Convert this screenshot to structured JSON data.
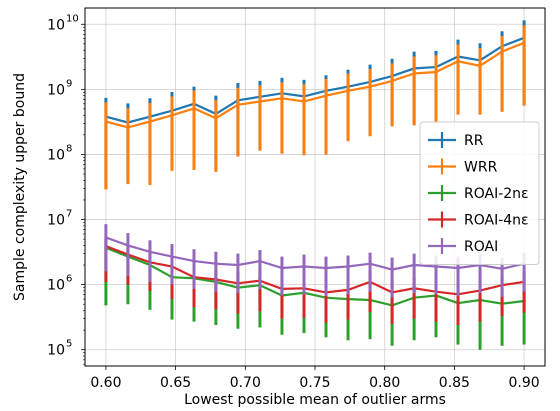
{
  "chart_data": {
    "type": "line",
    "xlabel": "Lowest possible mean of outlier arms",
    "ylabel": "Sample complexity upper bound",
    "xlim": [
      0.585,
      0.915
    ],
    "ylim_log10": [
      4.75,
      10.25
    ],
    "yscale": "log",
    "grid": true,
    "legend_position": "right",
    "x_ticks": [
      0.6,
      0.65,
      0.7,
      0.75,
      0.8,
      0.85,
      0.9
    ],
    "x_tick_labels": [
      "0.60",
      "0.65",
      "0.70",
      "0.75",
      "0.80",
      "0.85",
      "0.90"
    ],
    "y_ticks_exp": [
      5,
      6,
      7,
      8,
      9,
      10
    ],
    "y_tick_base": "10",
    "x": [
      0.6,
      0.6158,
      0.6316,
      0.6474,
      0.6632,
      0.6789,
      0.6947,
      0.7105,
      0.7263,
      0.7421,
      0.7579,
      0.7737,
      0.7895,
      0.8053,
      0.8211,
      0.8368,
      0.8526,
      0.8684,
      0.8842,
      0.9
    ],
    "series": [
      {
        "name": "RR",
        "color": "#1f77b4",
        "values": [
          380000000.0,
          310000000.0,
          380000000.0,
          470000000.0,
          600000000.0,
          420000000.0,
          680000000.0,
          770000000.0,
          870000000.0,
          780000000.0,
          950000000.0,
          1100000000.0,
          1300000000.0,
          1600000000.0,
          2100000000.0,
          2200000000.0,
          3200000000.0,
          2800000000.0,
          4600000000.0,
          6200000000.0
        ],
        "err_hi": [
          740000000.0,
          610000000.0,
          730000000.0,
          910000000.0,
          1100000000.0,
          800000000.0,
          1250000000.0,
          1350000000.0,
          1500000000.0,
          1400000000.0,
          1650000000.0,
          2000000000.0,
          2400000000.0,
          2950000000.0,
          3800000000.0,
          3900000000.0,
          5800000000.0,
          5100000000.0,
          7800000000.0,
          11500000000.0
        ],
        "err_lo": [
          30000000.0,
          36000000.0,
          36000000.0,
          58000000.0,
          60000000.0,
          56000000.0,
          96000000.0,
          117000000.0,
          106000000.0,
          100000000.0,
          102000000.0,
          165000000.0,
          197000000.0,
          276000000.0,
          287000000.0,
          305000000.0,
          420000000.0,
          417000000.0,
          460000000.0,
          580000000.0
        ]
      },
      {
        "name": "WRR",
        "color": "#ff7f0e",
        "values": [
          320000000.0,
          260000000.0,
          320000000.0,
          400000000.0,
          510000000.0,
          360000000.0,
          580000000.0,
          650000000.0,
          730000000.0,
          650000000.0,
          800000000.0,
          950000000.0,
          1100000000.0,
          1350000000.0,
          1750000000.0,
          1850000000.0,
          2700000000.0,
          2300000000.0,
          3800000000.0,
          5200000000.0
        ],
        "err_hi": [
          630000000.0,
          510000000.0,
          620000000.0,
          780000000.0,
          960000000.0,
          680000000.0,
          1060000000.0,
          1150000000.0,
          1280000000.0,
          1200000000.0,
          1450000000.0,
          1750000000.0,
          2050000000.0,
          2500000000.0,
          3200000000.0,
          3350000000.0,
          4900000000.0,
          4300000000.0,
          6600000000.0,
          9600000000.0
        ],
        "err_lo": [
          29000000.0,
          35000000.0,
          34000000.0,
          56000000.0,
          58000000.0,
          54000000.0,
          93000000.0,
          114000000.0,
          103000000.0,
          97000000.0,
          99000000.0,
          160000000.0,
          190000000.0,
          270000000.0,
          280000000.0,
          300000000.0,
          410000000.0,
          410000000.0,
          450000000.0,
          560000000.0
        ]
      },
      {
        "name": "ROAI-2nε",
        "color": "#2ca02c",
        "values": [
          3700000.0,
          2700000.0,
          2000000.0,
          1300000.0,
          1250000.0,
          1100000.0,
          900000.0,
          980000.0,
          680000.0,
          750000.0,
          630000.0,
          600000.0,
          580000.0,
          480000.0,
          630000.0,
          680000.0,
          520000.0,
          580000.0,
          510000.0,
          560000.0
        ],
        "err_hi": [
          5000000.0,
          3600000.0,
          2700000.0,
          1800000.0,
          1700000.0,
          1500000.0,
          1250000.0,
          1350000.0,
          950000.0,
          1050000.0,
          880000.0,
          840000.0,
          810000.0,
          670000.0,
          880000.0,
          950000.0,
          730000.0,
          810000.0,
          710000.0,
          780000.0
        ],
        "err_lo": [
          480000.0,
          500000.0,
          410000.0,
          290000.0,
          270000.0,
          240000.0,
          210000.0,
          220000.0,
          170000.0,
          180000.0,
          155000.0,
          140000.0,
          145000.0,
          115000.0,
          140000.0,
          155000.0,
          120000.0,
          100000.0,
          115000.0,
          120000.0
        ]
      },
      {
        "name": "ROAI-4nε",
        "color": "#d62728",
        "values": [
          3900000.0,
          2900000.0,
          2200000.0,
          1900000.0,
          1300000.0,
          1200000.0,
          1050000.0,
          1150000.0,
          860000.0,
          880000.0,
          760000.0,
          830000.0,
          1100000.0,
          760000.0,
          880000.0,
          780000.0,
          710000.0,
          810000.0,
          980000.0,
          1100000.0
        ],
        "err_hi": [
          5600000.0,
          4200000.0,
          3200000.0,
          2800000.0,
          1900000.0,
          1750000.0,
          1550000.0,
          1700000.0,
          1260000.0,
          1300000.0,
          1120000.0,
          1220000.0,
          1600000.0,
          1120000.0,
          1300000.0,
          1150000.0,
          1050000.0,
          1200000.0,
          1450000.0,
          1600000.0
        ],
        "err_lo": [
          1100000.0,
          1000000.0,
          800000.0,
          600000.0,
          450000.0,
          420000.0,
          360000.0,
          390000.0,
          300000.0,
          310000.0,
          260000.0,
          290000.0,
          380000.0,
          250000.0,
          300000.0,
          270000.0,
          240000.0,
          270000.0,
          330000.0,
          370000.0
        ]
      },
      {
        "name": "ROAI",
        "color": "#9467bd",
        "values": [
          5300000.0,
          4000000.0,
          3200000.0,
          2700000.0,
          2300000.0,
          2100000.0,
          2000000.0,
          2300000.0,
          1800000.0,
          1900000.0,
          1800000.0,
          1900000.0,
          2100000.0,
          1700000.0,
          2000000.0,
          1900000.0,
          1800000.0,
          2000000.0,
          1750000.0,
          2100000.0
        ],
        "err_hi": [
          8500000.0,
          6200000.0,
          4800000.0,
          4200000.0,
          3500000.0,
          3200000.0,
          3000000.0,
          3400000.0,
          2700000.0,
          2900000.0,
          2700000.0,
          2800000.0,
          3100000.0,
          2600000.0,
          3000000.0,
          2800000.0,
          2700000.0,
          3000000.0,
          2600000.0,
          3100000.0
        ],
        "err_lo": [
          1600000.0,
          1350000.0,
          1100000.0,
          1000000.0,
          860000.0,
          780000.0,
          740000.0,
          850000.0,
          680000.0,
          710000.0,
          670000.0,
          710000.0,
          780000.0,
          630000.0,
          740000.0,
          710000.0,
          670000.0,
          740000.0,
          650000.0,
          780000.0
        ]
      }
    ]
  }
}
